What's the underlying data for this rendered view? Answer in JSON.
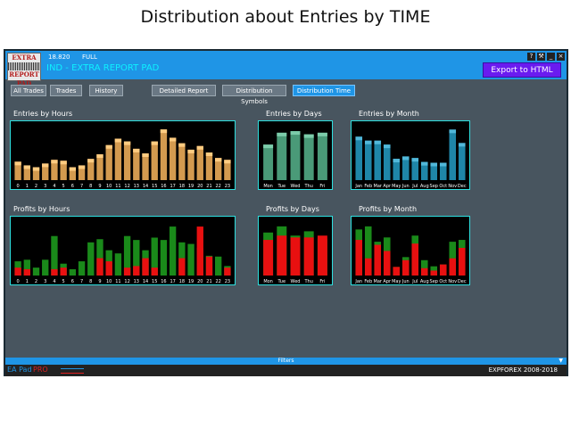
{
  "caption": "Distribution about Entries by TIME",
  "window": {
    "version": "18.820",
    "mode": "FULL",
    "title": "IND - EXTRA REPORT PAD",
    "export_label": "Export to HTML",
    "logo_top": "EXTRA",
    "logo_mid": "REPORT",
    "logo_bot": "PAD",
    "btn_help": "?",
    "btn_settings": "⚒",
    "btn_min": "_",
    "btn_close": "×"
  },
  "tabs": [
    {
      "label": "All Trades"
    },
    {
      "label": "Trades"
    },
    {
      "label": "History"
    },
    {
      "label": "Detailed Report"
    },
    {
      "label": "Distribution Symbols"
    },
    {
      "label": "Distribution Time"
    }
  ],
  "sections": {
    "entries_hours": "Entries by Hours",
    "entries_days": "Entries by Days",
    "entries_month": "Entries by Month",
    "profits_hours": "Profits by Hours",
    "profits_days": "Profits by Days",
    "profits_month": "Profits by Month"
  },
  "filters_label": "Filters",
  "footer": {
    "ea": "EA Pad",
    "pro": "PRO",
    "copyright": "EXPFOREX 2008-2018"
  },
  "colors": {
    "hours": "#d39a4f",
    "days": "#4a9a78",
    "month": "#1f86a8",
    "profit": "#1a8a1a",
    "loss": "#e81010"
  },
  "chart_data": [
    {
      "type": "bar",
      "name": "entries_hours",
      "categories": [
        "0",
        "1",
        "2",
        "3",
        "4",
        "5",
        "6",
        "7",
        "8",
        "9",
        "10",
        "11",
        "12",
        "13",
        "14",
        "15",
        "16",
        "17",
        "18",
        "19",
        "20",
        "21",
        "22",
        "23"
      ],
      "values": [
        20,
        16,
        14,
        18,
        22,
        21,
        14,
        16,
        23,
        28,
        38,
        45,
        42,
        34,
        29,
        42,
        55,
        46,
        40,
        33,
        37,
        30,
        24,
        22
      ],
      "ylim": [
        0,
        60
      ]
    },
    {
      "type": "bar",
      "name": "entries_days",
      "categories": [
        "Mon",
        "Tue",
        "Wed",
        "Thu",
        "Fri"
      ],
      "values": [
        45,
        60,
        62,
        58,
        60
      ],
      "ylim": [
        0,
        70
      ]
    },
    {
      "type": "bar",
      "name": "entries_month",
      "categories": [
        "Jan",
        "Feb",
        "Mar",
        "Apr",
        "May",
        "Jun",
        "Jul",
        "Aug",
        "Sep",
        "Oct",
        "Nov",
        "Dec"
      ],
      "values": [
        55,
        50,
        50,
        45,
        27,
        30,
        28,
        23,
        22,
        22,
        64,
        47
      ],
      "ylim": [
        0,
        70
      ]
    },
    {
      "type": "bar",
      "name": "profits_hours",
      "categories": [
        "0",
        "1",
        "2",
        "3",
        "4",
        "5",
        "6",
        "7",
        "8",
        "9",
        "10",
        "11",
        "12",
        "13",
        "14",
        "15",
        "16",
        "17",
        "18",
        "19",
        "20",
        "21",
        "22",
        "23"
      ],
      "series": [
        {
          "name": "profit",
          "values": [
            18,
            20,
            10,
            20,
            50,
            15,
            8,
            18,
            42,
            46,
            32,
            28,
            50,
            45,
            32,
            48,
            45,
            62,
            42,
            40,
            35,
            25,
            24,
            12
          ]
        },
        {
          "name": "loss",
          "values": [
            10,
            8,
            0,
            0,
            8,
            10,
            0,
            0,
            0,
            22,
            18,
            0,
            10,
            12,
            22,
            10,
            0,
            0,
            22,
            0,
            62,
            24,
            0,
            10
          ]
        }
      ],
      "ylim": [
        0,
        70
      ]
    },
    {
      "type": "bar",
      "name": "profits_days",
      "categories": [
        "Mon",
        "Tue",
        "Wed",
        "Thu",
        "Fri"
      ],
      "series": [
        {
          "name": "profit",
          "values": [
            70,
            80,
            65,
            72,
            60
          ]
        },
        {
          "name": "loss",
          "values": [
            58,
            65,
            62,
            62,
            65
          ]
        }
      ],
      "ylim": [
        0,
        90
      ]
    },
    {
      "type": "bar",
      "name": "profits_month",
      "categories": [
        "Jan",
        "Feb",
        "Mar",
        "Apr",
        "May",
        "Jun",
        "Jul",
        "Aug",
        "Sep",
        "Oct",
        "Nov",
        "Dec"
      ],
      "series": [
        {
          "name": "profit",
          "values": [
            75,
            80,
            55,
            62,
            14,
            30,
            65,
            25,
            15,
            18,
            55,
            58
          ]
        },
        {
          "name": "loss",
          "values": [
            58,
            28,
            50,
            40,
            14,
            25,
            52,
            12,
            8,
            18,
            28,
            45
          ]
        }
      ],
      "ylim": [
        0,
        90
      ]
    }
  ]
}
